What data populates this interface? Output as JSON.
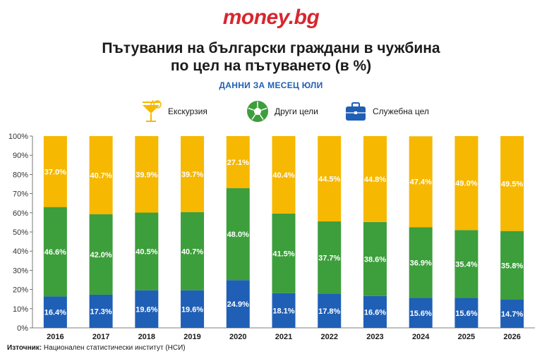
{
  "brand": "money.bg",
  "chart_data": {
    "type": "bar",
    "stacked": true,
    "title_line1": "Пътувания на български граждани в чужбина",
    "title_line2": "по цел на пътуването (в %)",
    "subtitle": "ДАННИ ЗА МЕСЕЦ ЮЛИ",
    "categories": [
      "2016",
      "2017",
      "2018",
      "2019",
      "2020",
      "2021",
      "2022",
      "2023",
      "2024",
      "2025",
      "2026"
    ],
    "series": [
      {
        "name": "Служебна цел",
        "color": "#1f5fb5",
        "icon": "briefcase-icon",
        "values": [
          16.4,
          17.3,
          19.6,
          19.6,
          24.9,
          18.1,
          17.8,
          16.6,
          15.6,
          15.6,
          14.7
        ]
      },
      {
        "name": "Други цели",
        "color": "#3d9e3c",
        "icon": "soccer-ball-icon",
        "values": [
          46.6,
          42.0,
          40.5,
          40.7,
          48.0,
          41.5,
          37.7,
          38.6,
          36.9,
          35.4,
          35.8
        ]
      },
      {
        "name": "Екскурзия",
        "color": "#f6b800",
        "icon": "cocktail-icon",
        "values": [
          37.0,
          40.7,
          39.9,
          39.7,
          27.1,
          40.4,
          44.5,
          44.8,
          47.4,
          49.0,
          49.5
        ]
      }
    ],
    "y_ticks": [
      "0%",
      "10%",
      "20%",
      "30%",
      "40%",
      "50%",
      "60%",
      "70%",
      "80%",
      "90%",
      "100%"
    ],
    "ylim": [
      0,
      100
    ],
    "legend_position": "top",
    "grid": false
  },
  "source_label": "Източник:",
  "source_text": "Национален статистически институт (НСИ)"
}
